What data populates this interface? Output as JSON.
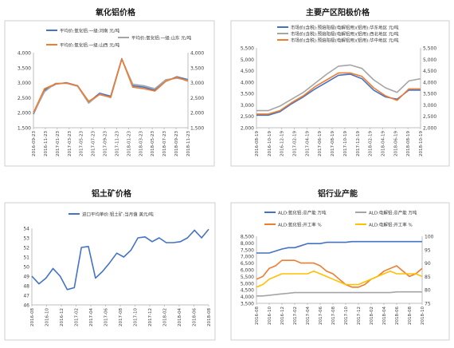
{
  "chart_data": [
    {
      "type": "line",
      "title": "氧化铝价格",
      "legend": "top-center",
      "y_left_ticks": [
        "1,500",
        "2,000",
        "2,500",
        "3,000",
        "3,500",
        "4,000"
      ],
      "y_right_ticks": [
        "1,500",
        "2,000",
        "2,500",
        "3,000",
        "3,500",
        "4,000"
      ],
      "ylim": [
        1500,
        4000
      ],
      "x_ticks": [
        "2016-09-23",
        "2016-11-23",
        "2017-01-23",
        "2017-03-23",
        "2017-05-23",
        "2017-07-23",
        "2017-09-23",
        "2017-11-23",
        "2018-01-23",
        "2018-03-23",
        "2018-05-23",
        "2018-07-23",
        "2018-09-23",
        "2018-11-23"
      ],
      "series": [
        {
          "name": "平均价:氧化铝:一级:河南 元/吨",
          "color": "#4472c4",
          "values": [
            1950,
            2750,
            2950,
            3000,
            2900,
            2350,
            2650,
            2550,
            3800,
            2900,
            2850,
            2750,
            3050,
            3200,
            3100
          ]
        },
        {
          "name": "平均价:氧化铝:一级:山东 元/吨",
          "color": "#a5a5a5",
          "values": [
            1980,
            2700,
            2980,
            2980,
            2880,
            2320,
            2620,
            2500,
            3780,
            2950,
            2900,
            2800,
            3100,
            3150,
            3080
          ]
        },
        {
          "name": "平均价:氧化铝:一级:山西 元/吨",
          "color": "#ed7d31",
          "values": [
            2000,
            2800,
            2960,
            2990,
            2900,
            2380,
            2600,
            2520,
            3790,
            2850,
            2800,
            2720,
            3050,
            3180,
            3050
          ]
        }
      ]
    },
    {
      "type": "line",
      "title": "主要产区阳极价格",
      "legend": "top-center",
      "y_left_ticks": [
        "2,000",
        "2,500",
        "3,000",
        "3,500",
        "4,000",
        "4,500",
        "5,000",
        "5,500"
      ],
      "y_right_ticks": [
        "2,000",
        "2,500",
        "3,000",
        "3,500",
        "4,000",
        "4,500",
        "5,000",
        "5,500"
      ],
      "ylim": [
        2000,
        5500
      ],
      "x_ticks": [
        "2016-08-19",
        "2016-10-19",
        "2016-12-19",
        "2017-02-19",
        "2017-04-19",
        "2017-06-19",
        "2017-08-19",
        "2017-10-19",
        "2017-12-19",
        "2018-02-19",
        "2018-04-19",
        "2018-06-19",
        "2018-08-19",
        "2018-10-19"
      ],
      "series": [
        {
          "name": "市场价(含税):预焙阳极(电解铝用)(铝用):华东地区 元/吨",
          "color": "#4472c4",
          "values": [
            2550,
            2550,
            2700,
            3050,
            3350,
            3700,
            4000,
            4300,
            4350,
            4150,
            3650,
            3350,
            3250,
            3650,
            3650
          ]
        },
        {
          "name": "市场价(含税):预焙阳极(电解铝用)(铝用):西北地区 元/吨",
          "color": "#a5a5a5",
          "values": [
            2750,
            2750,
            2950,
            3250,
            3550,
            3950,
            4350,
            4700,
            4750,
            4600,
            4100,
            3750,
            3550,
            4050,
            4150
          ]
        },
        {
          "name": "市场价(含税):预焙阳极(电解铝用)(铝用):华中地区 元/吨",
          "color": "#ed7d31",
          "values": [
            2600,
            2600,
            2750,
            3100,
            3400,
            3800,
            4100,
            4400,
            4400,
            4250,
            3750,
            3400,
            3200,
            3700,
            3700
          ]
        }
      ]
    },
    {
      "type": "line",
      "title": "铝土矿价格",
      "legend": "top-center",
      "y_left_ticks": [
        "46",
        "47",
        "48",
        "49",
        "50",
        "51",
        "52",
        "53",
        "54"
      ],
      "ylim": [
        46,
        54
      ],
      "x_ticks": [
        "2016-08",
        "2016-10",
        "2016-12",
        "2017-02",
        "2017-04",
        "2017-06",
        "2017-08",
        "2017-10",
        "2017-12",
        "2018-02",
        "2018-04",
        "2018-06",
        "2018-08"
      ],
      "series": [
        {
          "name": "进口平均单价:铝土矿:当月值 美元/吨",
          "color": "#4472c4",
          "values": [
            49.0,
            48.2,
            48.8,
            49.8,
            49.0,
            47.6,
            47.8,
            52.0,
            52.1,
            48.8,
            49.5,
            50.4,
            51.4,
            51.0,
            51.7,
            53.0,
            53.1,
            52.6,
            53.0,
            52.5,
            52.5,
            52.6,
            53.0,
            53.8,
            53.0,
            53.9
          ]
        }
      ]
    },
    {
      "type": "line",
      "title": "铝行业产能",
      "legend": "top-center",
      "y_left_ticks": [
        "3,500",
        "4,000",
        "4,500",
        "5,000",
        "5,500",
        "6,000",
        "6,500",
        "7,000",
        "7,500",
        "8,000",
        "8,500"
      ],
      "y_right_ticks": [
        "75",
        "80",
        "85",
        "90",
        "95",
        "100"
      ],
      "ylim_left": [
        3500,
        8500
      ],
      "ylim_right": [
        75,
        100
      ],
      "x_ticks": [
        "2016-08",
        "2016-10",
        "2016-12",
        "2017-02",
        "2017-04",
        "2017-06",
        "2017-08",
        "2017-10",
        "2017-12",
        "2018-02",
        "2018-04",
        "2018-06",
        "2018-08",
        "2018-10"
      ],
      "series": [
        {
          "name": "ALD:氧化铝:总产能 万吨",
          "axis": "left",
          "color": "#4472c4",
          "values": [
            7250,
            7250,
            7250,
            7400,
            7550,
            7650,
            7650,
            7800,
            7950,
            7950,
            7950,
            8050,
            8050,
            8050,
            8050,
            8100,
            8100,
            8100,
            8100,
            8100,
            8100,
            8100,
            8100,
            8100,
            8100,
            8100,
            8100
          ]
        },
        {
          "name": "ALD:电解铝:总产能 万吨",
          "axis": "left",
          "color": "#a5a5a5",
          "values": [
            4050,
            4050,
            4100,
            4150,
            4200,
            4250,
            4300,
            4300,
            4300,
            4300,
            4300,
            4300,
            4300,
            4300,
            4300,
            4300,
            4300,
            4300,
            4300,
            4300,
            4300,
            4300,
            4350,
            4350,
            4350,
            4350,
            4350
          ]
        },
        {
          "name": "ALD:氧化铝:开工率 %",
          "axis": "right",
          "color": "#ed7d31",
          "values": [
            84,
            85,
            88,
            89,
            91,
            91,
            91,
            90,
            90,
            90,
            89,
            87,
            86,
            84,
            82,
            81,
            81,
            82,
            84,
            85,
            87,
            88,
            89,
            87,
            85,
            86,
            88
          ]
        },
        {
          "name": "ALD:电解铝:开工率 %",
          "axis": "right",
          "color": "#ffc000",
          "values": [
            81,
            82,
            84,
            85,
            86,
            86,
            86,
            86,
            86,
            87,
            86,
            85,
            84,
            83,
            82,
            82,
            82,
            83,
            84,
            85,
            86,
            87,
            86,
            86,
            86,
            86,
            85
          ]
        }
      ]
    }
  ]
}
